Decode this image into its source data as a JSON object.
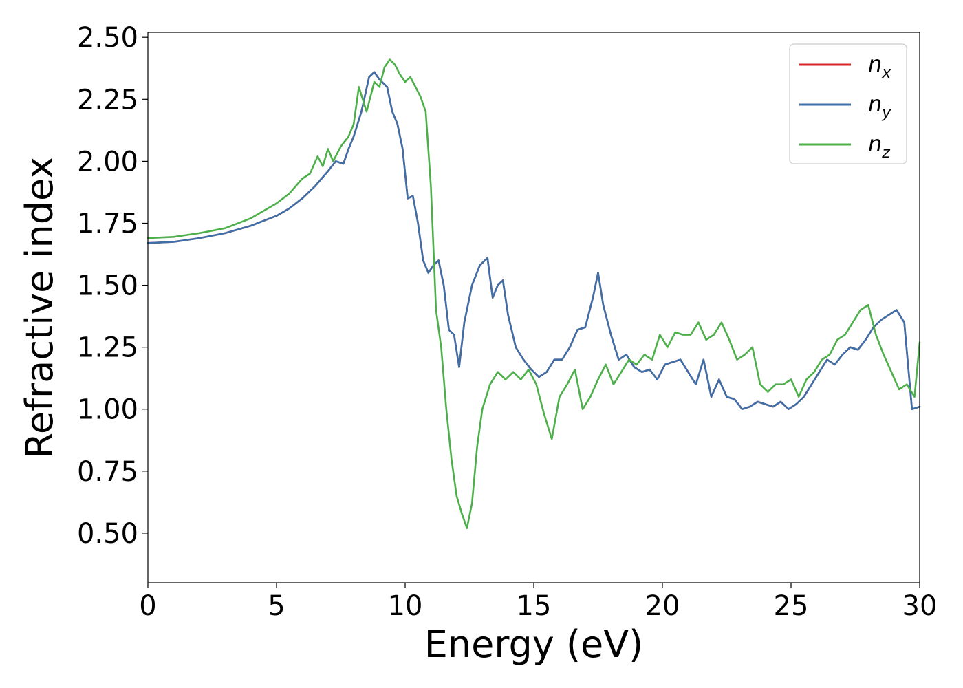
{
  "chart_data": {
    "type": "line",
    "xlabel": "Energy (eV)",
    "ylabel": "Refractive index",
    "xlim": [
      0,
      30
    ],
    "ylim": [
      0.3,
      2.52
    ],
    "xticks": [
      0,
      5,
      10,
      15,
      20,
      25,
      30
    ],
    "xtick_labels": [
      "0",
      "5",
      "10",
      "15",
      "20",
      "25",
      "30"
    ],
    "yticks": [
      0.5,
      0.75,
      1.0,
      1.25,
      1.5,
      1.75,
      2.0,
      2.25,
      2.5
    ],
    "ytick_labels": [
      "0.50",
      "0.75",
      "1.00",
      "1.25",
      "1.50",
      "1.75",
      "2.00",
      "2.25",
      "2.50"
    ],
    "grid": false,
    "legend_position": "top-right",
    "series": [
      {
        "name": "n_x",
        "legend_base": "n",
        "legend_sub": "x",
        "color": "#d62728",
        "x": [
          0,
          1,
          2,
          3,
          4,
          5,
          5.5,
          6,
          6.5,
          7,
          7.3,
          7.6,
          7.8,
          8.0,
          8.3,
          8.6,
          8.8,
          9.0,
          9.3,
          9.5,
          9.7,
          9.9,
          10.1,
          10.3,
          10.5,
          10.7,
          10.9,
          11.1,
          11.3,
          11.5,
          11.7,
          11.9,
          12.1,
          12.3,
          12.6,
          12.9,
          13.1,
          13.2,
          13.4,
          13.6,
          13.8,
          14.0,
          14.3,
          14.6,
          14.9,
          15.2,
          15.5,
          15.8,
          16.1,
          16.4,
          16.7,
          17.0,
          17.3,
          17.5,
          17.7,
          18.0,
          18.3,
          18.6,
          18.9,
          19.2,
          19.5,
          19.8,
          20.1,
          20.4,
          20.7,
          21.0,
          21.3,
          21.6,
          21.9,
          22.2,
          22.5,
          22.8,
          23.1,
          23.4,
          23.7,
          24.0,
          24.3,
          24.6,
          24.9,
          25.2,
          25.5,
          25.8,
          26.1,
          26.4,
          26.7,
          27.0,
          27.3,
          27.6,
          27.9,
          28.2,
          28.5,
          28.8,
          29.1,
          29.4,
          29.7,
          30.0
        ],
        "values": [
          1.67,
          1.675,
          1.69,
          1.71,
          1.74,
          1.78,
          1.81,
          1.85,
          1.9,
          1.96,
          2.0,
          1.99,
          2.05,
          2.1,
          2.2,
          2.34,
          2.36,
          2.33,
          2.3,
          2.2,
          2.15,
          2.05,
          1.85,
          1.86,
          1.75,
          1.6,
          1.55,
          1.58,
          1.6,
          1.5,
          1.32,
          1.3,
          1.17,
          1.35,
          1.5,
          1.58,
          1.6,
          1.61,
          1.45,
          1.5,
          1.52,
          1.38,
          1.25,
          1.2,
          1.16,
          1.13,
          1.15,
          1.2,
          1.2,
          1.25,
          1.32,
          1.33,
          1.45,
          1.55,
          1.42,
          1.3,
          1.2,
          1.22,
          1.17,
          1.15,
          1.16,
          1.12,
          1.18,
          1.19,
          1.2,
          1.15,
          1.1,
          1.2,
          1.05,
          1.12,
          1.05,
          1.04,
          1.0,
          1.01,
          1.03,
          1.02,
          1.01,
          1.03,
          1.0,
          1.02,
          1.05,
          1.1,
          1.15,
          1.2,
          1.18,
          1.22,
          1.25,
          1.24,
          1.28,
          1.33,
          1.36,
          1.38,
          1.4,
          1.35,
          1.0,
          1.01
        ]
      },
      {
        "name": "n_y",
        "legend_base": "n",
        "legend_sub": "y",
        "color": "#3d6fa8",
        "x": [
          0,
          1,
          2,
          3,
          4,
          5,
          5.5,
          6,
          6.5,
          7,
          7.3,
          7.6,
          7.8,
          8.0,
          8.3,
          8.6,
          8.8,
          9.0,
          9.3,
          9.5,
          9.7,
          9.9,
          10.1,
          10.3,
          10.5,
          10.7,
          10.9,
          11.1,
          11.3,
          11.5,
          11.7,
          11.9,
          12.1,
          12.3,
          12.6,
          12.9,
          13.1,
          13.2,
          13.4,
          13.6,
          13.8,
          14.0,
          14.3,
          14.6,
          14.9,
          15.2,
          15.5,
          15.8,
          16.1,
          16.4,
          16.7,
          17.0,
          17.3,
          17.5,
          17.7,
          18.0,
          18.3,
          18.6,
          18.9,
          19.2,
          19.5,
          19.8,
          20.1,
          20.4,
          20.7,
          21.0,
          21.3,
          21.6,
          21.9,
          22.2,
          22.5,
          22.8,
          23.1,
          23.4,
          23.7,
          24.0,
          24.3,
          24.6,
          24.9,
          25.2,
          25.5,
          25.8,
          26.1,
          26.4,
          26.7,
          27.0,
          27.3,
          27.6,
          27.9,
          28.2,
          28.5,
          28.8,
          29.1,
          29.4,
          29.7,
          30.0
        ],
        "values": [
          1.67,
          1.675,
          1.69,
          1.71,
          1.74,
          1.78,
          1.81,
          1.85,
          1.9,
          1.96,
          2.0,
          1.99,
          2.05,
          2.1,
          2.2,
          2.34,
          2.36,
          2.33,
          2.3,
          2.2,
          2.15,
          2.05,
          1.85,
          1.86,
          1.75,
          1.6,
          1.55,
          1.58,
          1.6,
          1.5,
          1.32,
          1.3,
          1.17,
          1.35,
          1.5,
          1.58,
          1.6,
          1.61,
          1.45,
          1.5,
          1.52,
          1.38,
          1.25,
          1.2,
          1.16,
          1.13,
          1.15,
          1.2,
          1.2,
          1.25,
          1.32,
          1.33,
          1.45,
          1.55,
          1.42,
          1.3,
          1.2,
          1.22,
          1.17,
          1.15,
          1.16,
          1.12,
          1.18,
          1.19,
          1.2,
          1.15,
          1.1,
          1.2,
          1.05,
          1.12,
          1.05,
          1.04,
          1.0,
          1.01,
          1.03,
          1.02,
          1.01,
          1.03,
          1.0,
          1.02,
          1.05,
          1.1,
          1.15,
          1.2,
          1.18,
          1.22,
          1.25,
          1.24,
          1.28,
          1.33,
          1.36,
          1.38,
          1.4,
          1.35,
          1.0,
          1.01
        ]
      },
      {
        "name": "n_z",
        "legend_base": "n",
        "legend_sub": "z",
        "color": "#4daf4a",
        "x": [
          0,
          1,
          2,
          3,
          4,
          5,
          5.5,
          6,
          6.3,
          6.6,
          6.8,
          7.0,
          7.2,
          7.5,
          7.8,
          8.0,
          8.2,
          8.5,
          8.8,
          9.0,
          9.2,
          9.4,
          9.6,
          9.8,
          10.0,
          10.2,
          10.4,
          10.6,
          10.8,
          11.0,
          11.2,
          11.4,
          11.6,
          11.8,
          12.0,
          12.2,
          12.4,
          12.6,
          12.8,
          13.0,
          13.3,
          13.6,
          13.9,
          14.2,
          14.5,
          14.8,
          15.1,
          15.4,
          15.7,
          16.0,
          16.3,
          16.6,
          16.9,
          17.2,
          17.5,
          17.8,
          18.1,
          18.4,
          18.7,
          19.0,
          19.3,
          19.6,
          19.9,
          20.2,
          20.5,
          20.8,
          21.1,
          21.4,
          21.7,
          22.0,
          22.3,
          22.6,
          22.9,
          23.2,
          23.5,
          23.8,
          24.1,
          24.4,
          24.7,
          25.0,
          25.3,
          25.6,
          25.9,
          26.2,
          26.5,
          26.8,
          27.1,
          27.4,
          27.7,
          28.0,
          28.3,
          28.6,
          28.9,
          29.2,
          29.5,
          29.8,
          30.0
        ],
        "values": [
          1.69,
          1.695,
          1.71,
          1.73,
          1.77,
          1.83,
          1.87,
          1.93,
          1.95,
          2.02,
          1.98,
          2.05,
          2.0,
          2.06,
          2.1,
          2.15,
          2.3,
          2.2,
          2.32,
          2.3,
          2.38,
          2.41,
          2.39,
          2.35,
          2.32,
          2.34,
          2.3,
          2.26,
          2.2,
          1.9,
          1.4,
          1.25,
          1.0,
          0.8,
          0.65,
          0.58,
          0.52,
          0.62,
          0.85,
          1.0,
          1.1,
          1.15,
          1.12,
          1.15,
          1.12,
          1.16,
          1.1,
          0.98,
          0.88,
          1.05,
          1.1,
          1.16,
          1.0,
          1.05,
          1.12,
          1.18,
          1.1,
          1.15,
          1.2,
          1.18,
          1.22,
          1.2,
          1.3,
          1.25,
          1.31,
          1.3,
          1.3,
          1.35,
          1.28,
          1.3,
          1.35,
          1.28,
          1.2,
          1.22,
          1.25,
          1.1,
          1.07,
          1.1,
          1.1,
          1.12,
          1.05,
          1.12,
          1.15,
          1.2,
          1.22,
          1.28,
          1.3,
          1.35,
          1.4,
          1.42,
          1.3,
          1.22,
          1.15,
          1.08,
          1.1,
          1.05,
          1.27
        ]
      }
    ]
  }
}
